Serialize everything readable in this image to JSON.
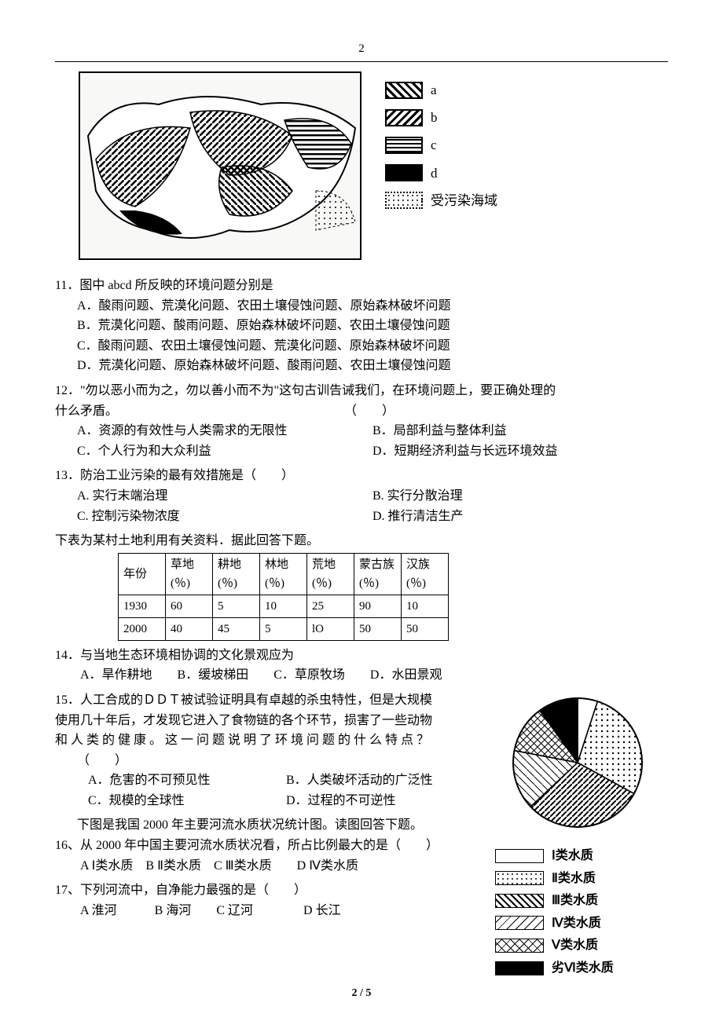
{
  "page": {
    "top_number": "2",
    "footer": "2 / 5"
  },
  "figure1": {
    "legend": {
      "a": "a",
      "b": "b",
      "c": "c",
      "d": "d",
      "polluted": "受污染海域"
    },
    "patterns": {
      "a_bg": "repeating-linear-gradient(45deg,#000 0 3px,#fff 3px 7px)",
      "b_bg": "repeating-linear-gradient(-45deg,#000 0 3px,#fff 3px 7px)",
      "c_bg": "repeating-linear-gradient(0deg,#000 0 2px,#fff 2px 5px)",
      "d_bg": "#000"
    }
  },
  "q11": {
    "stem": "11．图中 abcd 所反映的环境问题分别是",
    "A": "A．酸雨问题、荒漠化问题、农田土壤侵蚀问题、原始森林破坏问题",
    "B": "B．荒漠化问题、酸雨问题、原始森林破坏问题、农田土壤侵蚀问题",
    "C": "C．酸雨问题、农田土壤侵蚀问题、荒漠化问题、原始森林破坏问题",
    "D": "D．荒漠化问题、原始森林破坏问题、酸雨问题、农田土壤侵蚀问题"
  },
  "q12": {
    "stem_a": "12．\"勿以恶小而为之，勿以善小而不为\"这句古训告诫我们，在环境问题上，要正确处理的",
    "stem_b": "什么矛盾。　　　　　　　　　　　　　　　　　　　（　　）",
    "A": "A．资源的有效性与人类需求的无限性",
    "B": "B．局部利益与整体利益",
    "C": "C．个人行为和大众利益",
    "D": "D．短期经济利益与长远环境效益"
  },
  "q13": {
    "stem": "13．防治工业污染的最有效措施是（　　）",
    "A": "A. 实行末端治理",
    "B": "B. 实行分散治理",
    "C": "C. 控制污染物浓度",
    "D": "D. 推行清洁生产"
  },
  "table_intro": "下表为某村土地利用有关资料．据此回答下题。",
  "table": {
    "headers": [
      "年份",
      "草地\n(％)",
      "耕地\n(％)",
      "林地\n(％)",
      "荒地\n(％)",
      "蒙古族\n(％)",
      "汉族\n(％)"
    ],
    "rows": [
      [
        "1930",
        "60",
        "5",
        "10",
        "25",
        "90",
        "10"
      ],
      [
        "2000",
        "40",
        "45",
        "5",
        "lO",
        "50",
        "50"
      ]
    ]
  },
  "q14": {
    "stem": "14．与当地生态环境相协调的文化景观应为",
    "opts": "　　A．旱作耕地　　B．缓坡梯田　　C．草原牧场　　D．水田景观"
  },
  "q15": {
    "l1": "15．人工合成的ＤＤＴ被试验证明具有卓越的杀虫特性，但是大规模",
    "l2": "使用几十年后，才发现它进入了食物链的各个环节，损害了一些动物",
    "l3": "和人类的健康。这一问题说明了环境问题的什么特点？",
    "blank": "（　　）",
    "A": "A．危害的不可预见性",
    "B": "B．人类破坏活动的广泛性",
    "C": "C．规模的全球性",
    "D": "D．过程的不可逆性"
  },
  "chart_intro": "下图是我国 2000 年主要河流水质状况统计图。读图回答下题。",
  "q16": {
    "stem": "16、从 2000 年中国主要河流水质状况看，所占比例最大的是（　　）",
    "opts": "　　A Ⅰ类水质　B Ⅱ类水质　C Ⅲ类水质　　D Ⅳ类水质"
  },
  "q17": {
    "stem": "17、下列河流中，自净能力最强的是（　　）",
    "opts": "　　A 淮河　　　B 海河　　C 辽河　　　　D 长江"
  },
  "pie": {
    "type": "pie",
    "categories": [
      "Ⅰ类水质",
      "Ⅱ类水质",
      "Ⅲ类水质",
      "Ⅳ类水质",
      "Ⅴ类水质",
      "劣Ⅵ类水质"
    ],
    "values": [
      5,
      28,
      30,
      15,
      12,
      10
    ],
    "fills": [
      "#ffffff",
      "radial-gradient(#000 1px, transparent 1px) 0 0/6px 6px",
      "repeating-linear-gradient(45deg,#000 0 2px,#fff 2px 6px)",
      "repeating-linear-gradient(-45deg,#000 0 1px,#fff 1px 8px)",
      "repeating-linear-gradient(45deg,#000 0 1px,transparent 1px 8px),repeating-linear-gradient(-45deg,#000 0 1px,transparent 1px 8px)",
      "#000000"
    ],
    "border_color": "#000",
    "legend_labels": [
      "Ⅰ类水质",
      "Ⅱ类水质",
      "Ⅲ类水质",
      "Ⅳ类水质",
      "Ⅴ类水质",
      "劣Ⅵ类水质"
    ]
  }
}
